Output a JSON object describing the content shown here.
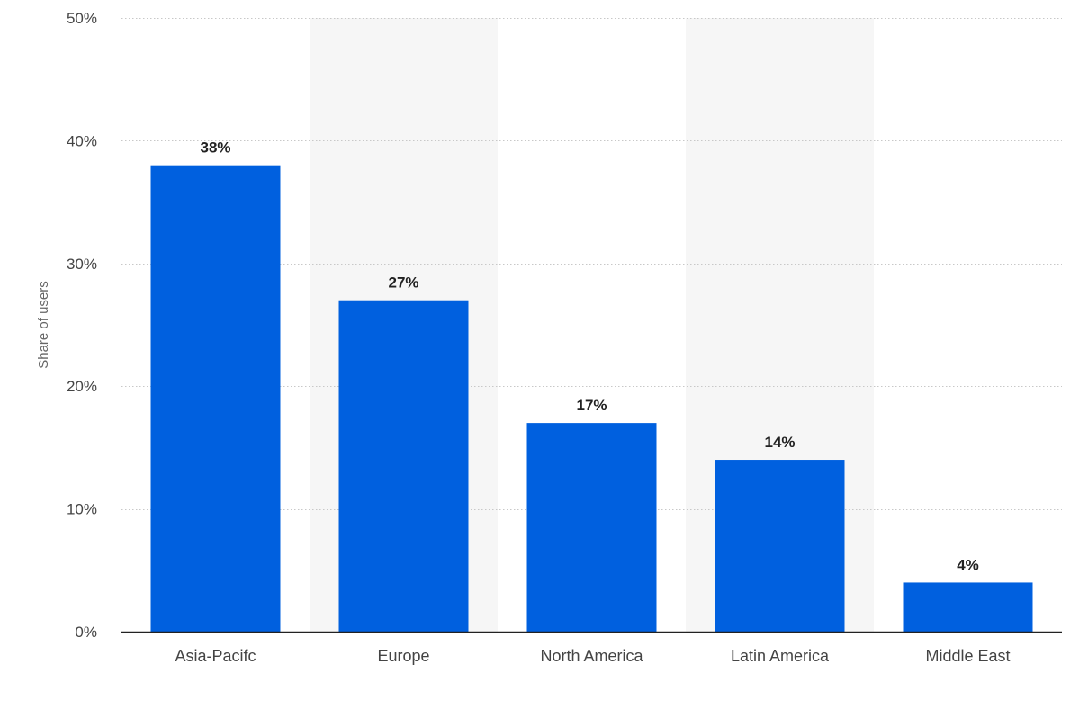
{
  "colors": {
    "bar": "#0060df",
    "band": "#f6f6f6",
    "grid": "#c8c8c8",
    "axis_line": "#222222",
    "tick_text": "#444444",
    "value_text": "#222222",
    "ylabel_text": "#666666",
    "background": "#ffffff"
  },
  "chart_data": {
    "type": "bar",
    "categories": [
      "Asia-Pacifc",
      "Europe",
      "North America",
      "Latin America",
      "Middle East"
    ],
    "values": [
      38,
      27,
      17,
      14,
      4
    ],
    "value_labels": [
      "38%",
      "27%",
      "17%",
      "14%",
      "4%"
    ],
    "title": "",
    "xlabel": "",
    "ylabel": "Share of users",
    "ylim": [
      0,
      50
    ],
    "yticks": [
      0,
      10,
      20,
      30,
      40,
      50
    ],
    "ytick_labels": [
      "0%",
      "10%",
      "20%",
      "30%",
      "40%",
      "50%"
    ],
    "grid": true,
    "grid_style": "dotted",
    "alternating_bands": true,
    "legend": "none"
  }
}
